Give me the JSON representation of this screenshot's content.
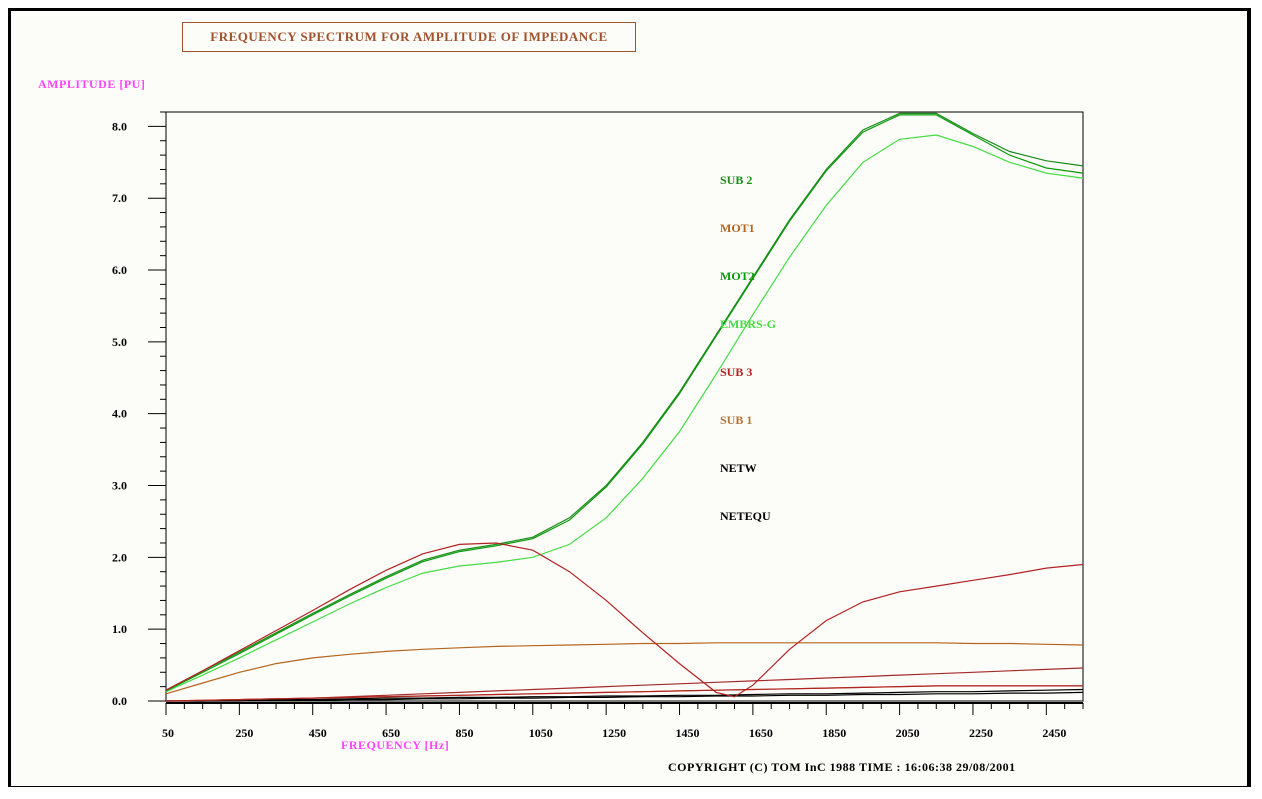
{
  "copyright": "COPYRIGHT (C) TOM InC 1988 TIME : 16:06:38 29/08/2001",
  "chart_data": {
    "type": "line",
    "title": "FREQUENCY SPECTRUM FOR AMPLITUDE OF IMPEDANCE",
    "xlabel": "FREQUENCY [Hz]",
    "ylabel": "AMPLITUDE [PU]",
    "xlim": [
      50,
      2550
    ],
    "ylim": [
      0,
      8.2
    ],
    "x_ticks": [
      50,
      250,
      450,
      650,
      850,
      1050,
      1250,
      1450,
      1650,
      1850,
      2050,
      2250,
      2450
    ],
    "y_ticks": [
      0,
      1,
      2,
      3,
      4,
      5,
      6,
      7,
      8
    ],
    "y_tick_labels": [
      "0.0",
      "1.0",
      "2.0",
      "3.0",
      "4.0",
      "5.0",
      "6.0",
      "7.0",
      "8.0"
    ],
    "legend_placement": "center-right",
    "x": [
      50,
      150,
      250,
      350,
      450,
      550,
      650,
      750,
      850,
      950,
      1050,
      1150,
      1250,
      1350,
      1450,
      1550,
      1650,
      1750,
      1850,
      1950,
      2050,
      2150,
      2250,
      2350,
      2450,
      2550
    ],
    "series": [
      {
        "name": "SUB 2",
        "color": "#1a8c1a",
        "values": [
          0.15,
          0.42,
          0.68,
          0.95,
          1.22,
          1.48,
          1.73,
          1.96,
          2.1,
          2.18,
          2.28,
          2.55,
          3.0,
          3.6,
          4.3,
          5.1,
          5.9,
          6.7,
          7.4,
          7.95,
          8.18,
          8.18,
          7.9,
          7.65,
          7.52,
          7.45
        ]
      },
      {
        "name": "MOT1",
        "color": "#b5651d",
        "values": [
          0.1,
          0.25,
          0.4,
          0.52,
          0.6,
          0.65,
          0.69,
          0.72,
          0.74,
          0.76,
          0.77,
          0.78,
          0.79,
          0.8,
          0.8,
          0.81,
          0.81,
          0.81,
          0.81,
          0.81,
          0.81,
          0.81,
          0.8,
          0.8,
          0.79,
          0.78
        ]
      },
      {
        "name": "MOT2",
        "color": "#0a9a0a",
        "values": [
          0.14,
          0.4,
          0.66,
          0.93,
          1.2,
          1.46,
          1.71,
          1.94,
          2.08,
          2.16,
          2.26,
          2.52,
          2.98,
          3.58,
          4.28,
          5.08,
          5.88,
          6.68,
          7.38,
          7.92,
          8.16,
          8.16,
          7.88,
          7.6,
          7.42,
          7.35
        ]
      },
      {
        "name": "EMBRS-G",
        "color": "#44dd44",
        "values": [
          0.13,
          0.36,
          0.6,
          0.85,
          1.1,
          1.35,
          1.58,
          1.78,
          1.88,
          1.93,
          2.0,
          2.18,
          2.55,
          3.1,
          3.75,
          4.55,
          5.38,
          6.18,
          6.9,
          7.5,
          7.82,
          7.88,
          7.72,
          7.5,
          7.35,
          7.28
        ]
      },
      {
        "name": "SUB 3",
        "color": "#b22222",
        "values": [
          0.0,
          0.01,
          0.02,
          0.03,
          0.04,
          0.05,
          0.06,
          0.07,
          0.08,
          0.09,
          0.1,
          0.11,
          0.12,
          0.13,
          0.14,
          0.15,
          0.16,
          0.17,
          0.18,
          0.19,
          0.2,
          0.21,
          0.21,
          0.21,
          0.21,
          0.21
        ]
      },
      {
        "name": "SUB 1",
        "color": "#b87333",
        "values": [
          0.0,
          0.01,
          0.02,
          0.03,
          0.04,
          0.05,
          0.06,
          0.07,
          0.08,
          0.09,
          0.1,
          0.11,
          0.12,
          0.13,
          0.14,
          0.15,
          0.16,
          0.17,
          0.18,
          0.19,
          0.2,
          0.21,
          0.21,
          0.21,
          0.21,
          0.21
        ]
      },
      {
        "name": "NETW",
        "color": "#000000",
        "values": [
          0.0,
          0.0,
          0.01,
          0.02,
          0.02,
          0.03,
          0.04,
          0.04,
          0.05,
          0.05,
          0.06,
          0.06,
          0.07,
          0.07,
          0.08,
          0.08,
          0.09,
          0.1,
          0.1,
          0.11,
          0.12,
          0.13,
          0.13,
          0.14,
          0.15,
          0.16
        ]
      },
      {
        "name": "NETEQU",
        "color": "#000000",
        "values": [
          0.0,
          0.0,
          0.0,
          0.01,
          0.01,
          0.02,
          0.02,
          0.03,
          0.03,
          0.04,
          0.04,
          0.05,
          0.05,
          0.06,
          0.06,
          0.07,
          0.07,
          0.08,
          0.08,
          0.09,
          0.09,
          0.1,
          0.1,
          0.11,
          0.11,
          0.12
        ]
      },
      {
        "name": "",
        "color": "#a52a2a",
        "values": [
          0.0,
          0.01,
          0.02,
          0.03,
          0.04,
          0.06,
          0.08,
          0.1,
          0.12,
          0.14,
          0.16,
          0.18,
          0.2,
          0.22,
          0.24,
          0.26,
          0.28,
          0.3,
          0.32,
          0.34,
          0.36,
          0.38,
          0.4,
          0.42,
          0.44,
          0.46
        ]
      }
    ],
    "overlay_series": {
      "name": "SUB 3",
      "color": "#b22222",
      "x": [
        50,
        150,
        250,
        350,
        450,
        550,
        650,
        750,
        850,
        950,
        1050,
        1150,
        1250,
        1350,
        1450,
        1550,
        1600,
        1650,
        1750,
        1850,
        1950,
        2050,
        2150,
        2250,
        2350,
        2450,
        2550
      ],
      "values": [
        0.15,
        0.42,
        0.7,
        0.98,
        1.26,
        1.55,
        1.82,
        2.05,
        2.18,
        2.2,
        2.1,
        1.8,
        1.4,
        0.95,
        0.52,
        0.12,
        0.06,
        0.22,
        0.72,
        1.12,
        1.38,
        1.52,
        1.6,
        1.68,
        1.76,
        1.85,
        1.9
      ]
    }
  }
}
